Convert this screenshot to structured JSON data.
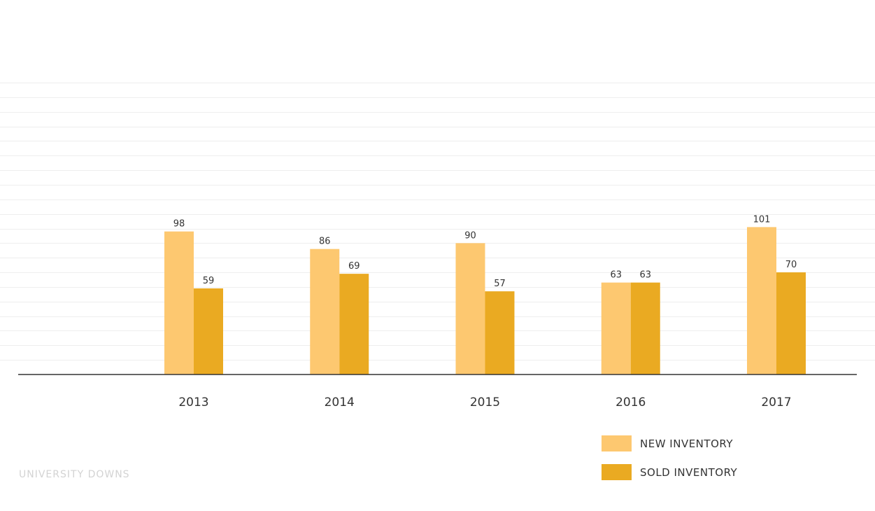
{
  "chart_data": {
    "type": "bar",
    "categories": [
      "2013",
      "2014",
      "2015",
      "2016",
      "2017"
    ],
    "series": [
      {
        "name": "NEW INVENTORY",
        "values": [
          98,
          86,
          90,
          63,
          101
        ],
        "color": "#fdc870"
      },
      {
        "name": "SOLD INVENTORY",
        "values": [
          59,
          69,
          57,
          63,
          70
        ],
        "color": "#eaaa22"
      }
    ],
    "ylim": [
      0,
      200
    ],
    "grid": true,
    "legend_position": "bottom-right"
  },
  "footer": {
    "text": "UNIVERSITY DOWNS"
  }
}
